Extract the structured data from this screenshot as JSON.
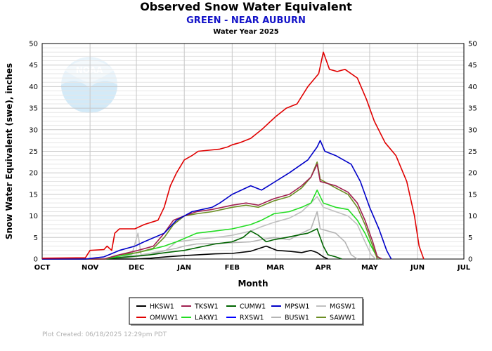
{
  "chart_data": {
    "type": "line",
    "title": "Observed Snow Water Equivalent",
    "subtitle": "GREEN - NEAR AUBURN",
    "subtitle2": "Water Year 2025",
    "xlabel": "Month",
    "ylabel": "Snow Water Equivalent (swe),  inches",
    "ylim": [
      0,
      50
    ],
    "yticks": [
      0,
      5,
      10,
      15,
      20,
      25,
      30,
      35,
      40,
      45,
      50
    ],
    "x_unit": "days since Oct 1",
    "xlim": [
      0,
      273
    ],
    "month_ticks": [
      {
        "label": "OCT",
        "day": 0
      },
      {
        "label": "NOV",
        "day": 31
      },
      {
        "label": "DEC",
        "day": 61
      },
      {
        "label": "JAN",
        "day": 92
      },
      {
        "label": "FEB",
        "day": 123
      },
      {
        "label": "MAR",
        "day": 151
      },
      {
        "label": "APR",
        "day": 182
      },
      {
        "label": "MAY",
        "day": 212
      },
      {
        "label": "JUN",
        "day": 243
      },
      {
        "label": "JUL",
        "day": 273
      }
    ],
    "grid": true,
    "legend_placement": "bottom-center",
    "series": [
      {
        "name": "OMWW1",
        "color": "#e00000",
        "points": [
          [
            0,
            0.2
          ],
          [
            28,
            0.3
          ],
          [
            31,
            2
          ],
          [
            40,
            2.2
          ],
          [
            42,
            3
          ],
          [
            45,
            2
          ],
          [
            47,
            6
          ],
          [
            50,
            7
          ],
          [
            60,
            7
          ],
          [
            66,
            8
          ],
          [
            75,
            9
          ],
          [
            79,
            12
          ],
          [
            83,
            17
          ],
          [
            87,
            20
          ],
          [
            92,
            23
          ],
          [
            97,
            24
          ],
          [
            101,
            25
          ],
          [
            115,
            25.5
          ],
          [
            120,
            26
          ],
          [
            123,
            26.5
          ],
          [
            128,
            27
          ],
          [
            135,
            28
          ],
          [
            142,
            30
          ],
          [
            151,
            33
          ],
          [
            158,
            35
          ],
          [
            165,
            36
          ],
          [
            172,
            40
          ],
          [
            179,
            43
          ],
          [
            182,
            48
          ],
          [
            186,
            44
          ],
          [
            191,
            43.5
          ],
          [
            196,
            44
          ],
          [
            204,
            42
          ],
          [
            210,
            37
          ],
          [
            215,
            32
          ],
          [
            222,
            27
          ],
          [
            229,
            24
          ],
          [
            236,
            18
          ],
          [
            241,
            10
          ],
          [
            244,
            3
          ],
          [
            247,
            0
          ]
        ]
      },
      {
        "name": "MPSW1",
        "color": "#0000c8",
        "points": [
          [
            0,
            0
          ],
          [
            28,
            0
          ],
          [
            40,
            0.5
          ],
          [
            50,
            2
          ],
          [
            60,
            3
          ],
          [
            66,
            4
          ],
          [
            79,
            6
          ],
          [
            87,
            9
          ],
          [
            97,
            11
          ],
          [
            110,
            12
          ],
          [
            115,
            13
          ],
          [
            123,
            15
          ],
          [
            135,
            17
          ],
          [
            142,
            16
          ],
          [
            151,
            18
          ],
          [
            160,
            20
          ],
          [
            172,
            23
          ],
          [
            178,
            26
          ],
          [
            180,
            27.5
          ],
          [
            183,
            25
          ],
          [
            190,
            24
          ],
          [
            200,
            22
          ],
          [
            206,
            18
          ],
          [
            212,
            12
          ],
          [
            218,
            7
          ],
          [
            223,
            2
          ],
          [
            226,
            0
          ]
        ]
      },
      {
        "name": "TKSW1",
        "color": "#a02050",
        "points": [
          [
            0,
            0
          ],
          [
            40,
            0
          ],
          [
            50,
            1
          ],
          [
            62,
            2
          ],
          [
            72,
            3
          ],
          [
            79,
            6
          ],
          [
            85,
            9
          ],
          [
            92,
            10
          ],
          [
            100,
            11
          ],
          [
            110,
            11.5
          ],
          [
            123,
            12.5
          ],
          [
            132,
            13
          ],
          [
            140,
            12.5
          ],
          [
            150,
            14
          ],
          [
            160,
            15
          ],
          [
            168,
            17
          ],
          [
            174,
            19
          ],
          [
            178,
            22
          ],
          [
            180,
            18
          ],
          [
            190,
            17
          ],
          [
            198,
            15.5
          ],
          [
            204,
            13
          ],
          [
            209,
            9
          ],
          [
            214,
            4
          ],
          [
            217,
            0.5
          ],
          [
            220,
            0
          ]
        ]
      },
      {
        "name": "SAWW1",
        "color": "#6b8e23",
        "points": [
          [
            0,
            0
          ],
          [
            40,
            0
          ],
          [
            50,
            1
          ],
          [
            62,
            1.5
          ],
          [
            72,
            2.5
          ],
          [
            79,
            5
          ],
          [
            85,
            8
          ],
          [
            92,
            10
          ],
          [
            100,
            10.5
          ],
          [
            110,
            11
          ],
          [
            123,
            12
          ],
          [
            132,
            12.5
          ],
          [
            140,
            12
          ],
          [
            150,
            13.5
          ],
          [
            160,
            14.5
          ],
          [
            168,
            16.5
          ],
          [
            174,
            19
          ],
          [
            178,
            22.5
          ],
          [
            180,
            18.5
          ],
          [
            190,
            16.5
          ],
          [
            198,
            15
          ],
          [
            204,
            12
          ],
          [
            209,
            8
          ],
          [
            214,
            3
          ],
          [
            217,
            0
          ]
        ]
      },
      {
        "name": "LAKW1",
        "color": "#22dd22",
        "points": [
          [
            0,
            0
          ],
          [
            40,
            0
          ],
          [
            55,
            1
          ],
          [
            68,
            2
          ],
          [
            79,
            3
          ],
          [
            87,
            4
          ],
          [
            100,
            6
          ],
          [
            112,
            6.5
          ],
          [
            123,
            7
          ],
          [
            135,
            8
          ],
          [
            142,
            9
          ],
          [
            150,
            10.5
          ],
          [
            160,
            11
          ],
          [
            168,
            12
          ],
          [
            174,
            13
          ],
          [
            178,
            16
          ],
          [
            182,
            13
          ],
          [
            190,
            12
          ],
          [
            198,
            11.5
          ],
          [
            204,
            9
          ],
          [
            209,
            6
          ],
          [
            213,
            3
          ],
          [
            216,
            1
          ],
          [
            219,
            0
          ]
        ]
      },
      {
        "name": "MGSW1",
        "color": "#c0c0c0",
        "points": [
          [
            0,
            0
          ],
          [
            40,
            0
          ],
          [
            52,
            0.5
          ],
          [
            58,
            1
          ],
          [
            62,
            6
          ],
          [
            64,
            1
          ],
          [
            80,
            2
          ],
          [
            87,
            4
          ],
          [
            98,
            4.5
          ],
          [
            112,
            5
          ],
          [
            123,
            5.5
          ],
          [
            135,
            6.5
          ],
          [
            142,
            7.5
          ],
          [
            150,
            8.5
          ],
          [
            160,
            9.5
          ],
          [
            168,
            11
          ],
          [
            174,
            13
          ],
          [
            178,
            14.5
          ],
          [
            182,
            12
          ],
          [
            190,
            11
          ],
          [
            198,
            10
          ],
          [
            204,
            8
          ],
          [
            209,
            4
          ],
          [
            213,
            1
          ],
          [
            216,
            0
          ]
        ]
      },
      {
        "name": "BUSW1",
        "color": "#b4b4b4",
        "points": [
          [
            0,
            0
          ],
          [
            40,
            0
          ],
          [
            55,
            0.3
          ],
          [
            70,
            1
          ],
          [
            80,
            2
          ],
          [
            87,
            2.5
          ],
          [
            92,
            3
          ],
          [
            100,
            3.5
          ],
          [
            112,
            3.6
          ],
          [
            123,
            3.8
          ],
          [
            135,
            4
          ],
          [
            142,
            4.5
          ],
          [
            150,
            5
          ],
          [
            160,
            4.5
          ],
          [
            168,
            6
          ],
          [
            174,
            7
          ],
          [
            178,
            11
          ],
          [
            180,
            7
          ],
          [
            190,
            6
          ],
          [
            196,
            4
          ],
          [
            200,
            1
          ],
          [
            204,
            0
          ]
        ]
      },
      {
        "name": "CUMW1",
        "color": "#006400",
        "points": [
          [
            0,
            0
          ],
          [
            40,
            0
          ],
          [
            55,
            0.5
          ],
          [
            70,
            1
          ],
          [
            80,
            1.5
          ],
          [
            92,
            2
          ],
          [
            105,
            3
          ],
          [
            112,
            3.5
          ],
          [
            123,
            4
          ],
          [
            130,
            5
          ],
          [
            135,
            6.5
          ],
          [
            140,
            5.5
          ],
          [
            145,
            4
          ],
          [
            150,
            4.5
          ],
          [
            158,
            5
          ],
          [
            165,
            5.5
          ],
          [
            172,
            6
          ],
          [
            178,
            7
          ],
          [
            182,
            3
          ],
          [
            185,
            1
          ],
          [
            190,
            0.5
          ],
          [
            194,
            0
          ]
        ]
      },
      {
        "name": "HKSW1",
        "color": "#000000",
        "points": [
          [
            0,
            0
          ],
          [
            60,
            0
          ],
          [
            70,
            0.2
          ],
          [
            80,
            0.5
          ],
          [
            92,
            0.8
          ],
          [
            112,
            1.2
          ],
          [
            123,
            1.3
          ],
          [
            135,
            1.8
          ],
          [
            145,
            3
          ],
          [
            152,
            2
          ],
          [
            160,
            1.8
          ],
          [
            168,
            1.5
          ],
          [
            174,
            2
          ],
          [
            178,
            1.5
          ],
          [
            182,
            0.5
          ],
          [
            185,
            0
          ]
        ]
      },
      {
        "name": "RXSW1",
        "color": "#0000ff",
        "points": []
      }
    ],
    "legend_order": [
      "HKSW1",
      "TKSW1",
      "CUMW1",
      "MPSW1",
      "MGSW1",
      "OMWW1",
      "LAKW1",
      "RXSW1",
      "BUSW1",
      "SAWW1"
    ]
  },
  "footnote": "Plot Created: 06/18/2025 12:29pm PDT",
  "logo_text": "NOAA"
}
